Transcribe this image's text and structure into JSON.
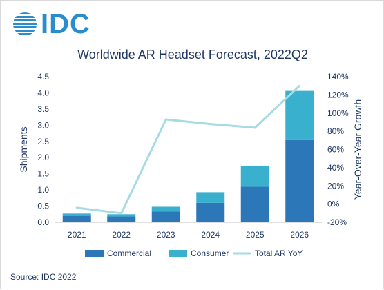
{
  "logo": {
    "text": "IDC",
    "icon": "globe-icon",
    "color": "#2a8ccc"
  },
  "title": "Worldwide AR Headset Forecast, 2022Q2",
  "source": "Source: IDC 2022",
  "chart_data": {
    "type": "bar",
    "stacked": true,
    "categories": [
      "2021",
      "2022",
      "2023",
      "2024",
      "2025",
      "2026"
    ],
    "series": [
      {
        "name": "Commercial",
        "kind": "bar",
        "axis": "left",
        "color": "#2b77b8",
        "values": [
          0.2,
          0.18,
          0.33,
          0.6,
          1.1,
          2.54
        ]
      },
      {
        "name": "Consumer",
        "kind": "bar",
        "axis": "left",
        "color": "#3ab0cf",
        "values": [
          0.07,
          0.07,
          0.15,
          0.33,
          0.65,
          1.52
        ]
      },
      {
        "name": "Total AR YoY",
        "kind": "line",
        "axis": "right",
        "color": "#a6dbe5",
        "values": [
          -4,
          -10,
          93,
          88,
          84,
          130
        ]
      }
    ],
    "ylabel": "Shipments",
    "ylim": [
      0,
      4.5
    ],
    "yticks": [
      "0.0",
      "0.5",
      "1.0",
      "1.5",
      "2.0",
      "2.5",
      "3.0",
      "3.5",
      "4.0",
      "4.5"
    ],
    "y2label": "Year-Over-Year Growth",
    "y2lim": [
      -20,
      140
    ],
    "y2ticks": [
      "-20%",
      "0%",
      "20%",
      "40%",
      "60%",
      "80%",
      "100%",
      "120%",
      "140%"
    ],
    "legend": "bottom",
    "grid": false
  }
}
